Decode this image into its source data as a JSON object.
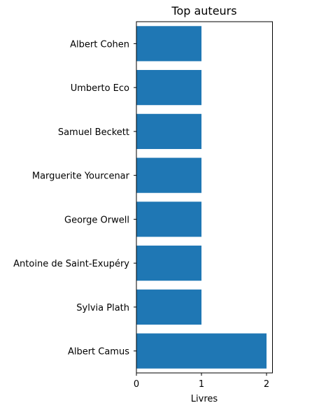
{
  "chart_data": {
    "type": "bar",
    "orientation": "horizontal",
    "title": "Top auteurs",
    "xlabel": "Livres",
    "ylabel": "",
    "categories": [
      "Albert Camus",
      "Sylvia Plath",
      "Antoine de Saint-Exupéry",
      "George Orwell",
      "Marguerite Yourcenar",
      "Samuel Beckett",
      "Umberto Eco",
      "Albert Cohen"
    ],
    "values": [
      2,
      1,
      1,
      1,
      1,
      1,
      1,
      1
    ],
    "xlim": [
      0,
      2.1
    ],
    "xticks": [
      "0",
      "1",
      "2"
    ],
    "grid": false,
    "bar_color": "#1f77b4"
  }
}
